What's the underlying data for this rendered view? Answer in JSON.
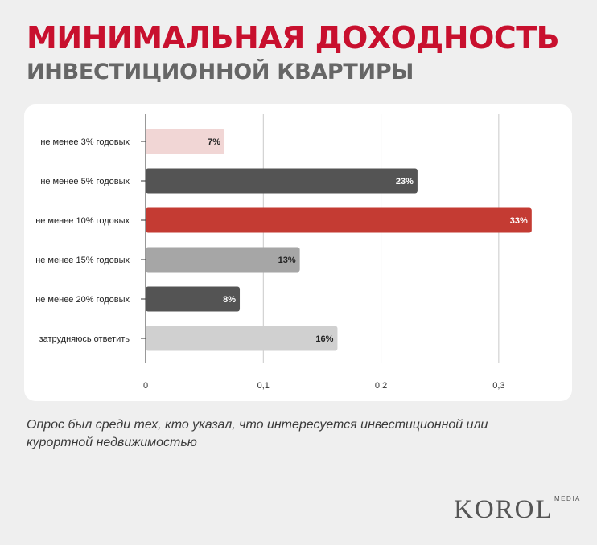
{
  "header": {
    "title": "МИНИМАЛЬНАЯ ДОХОДНОСТЬ",
    "subtitle": "ИНВЕСТИЦИОННОЙ КВАРТИРЫ"
  },
  "colors": {
    "title": "#c8102e",
    "subtitle": "#666666",
    "background": "#efefef",
    "card": "#ffffff"
  },
  "chart_data": {
    "type": "bar",
    "orientation": "horizontal",
    "categories": [
      "не менее 3% годовых",
      "не менее 5% годовых",
      "не менее 10% годовых",
      "не менее 15% годовых",
      "не менее 20% годовых",
      "затрудняюсь ответить"
    ],
    "values": [
      0.067,
      0.231,
      0.328,
      0.131,
      0.08,
      0.163
    ],
    "data_labels": [
      "7%",
      "23%",
      "33%",
      "13%",
      "8%",
      "16%"
    ],
    "bar_colors": [
      "#f1d6d5",
      "#545454",
      "#c43b33",
      "#a6a6a6",
      "#545454",
      "#d0d0d0"
    ],
    "label_colors": [
      "#222222",
      "#ffffff",
      "#ffffff",
      "#222222",
      "#ffffff",
      "#222222"
    ],
    "xlim": [
      0,
      0.35
    ],
    "xticks": [
      0,
      0.1,
      0.2,
      0.3
    ],
    "xtick_labels": [
      "0",
      "0,1",
      "0,2",
      "0,3"
    ],
    "grid": true,
    "title": "",
    "xlabel": "",
    "ylabel": ""
  },
  "footer": {
    "note": "Опрос был среди тех, кто указал, что интересуется инвестиционной или курортной недвижимостью",
    "logo": "KOROL",
    "logo_sub": "MEDIA"
  }
}
